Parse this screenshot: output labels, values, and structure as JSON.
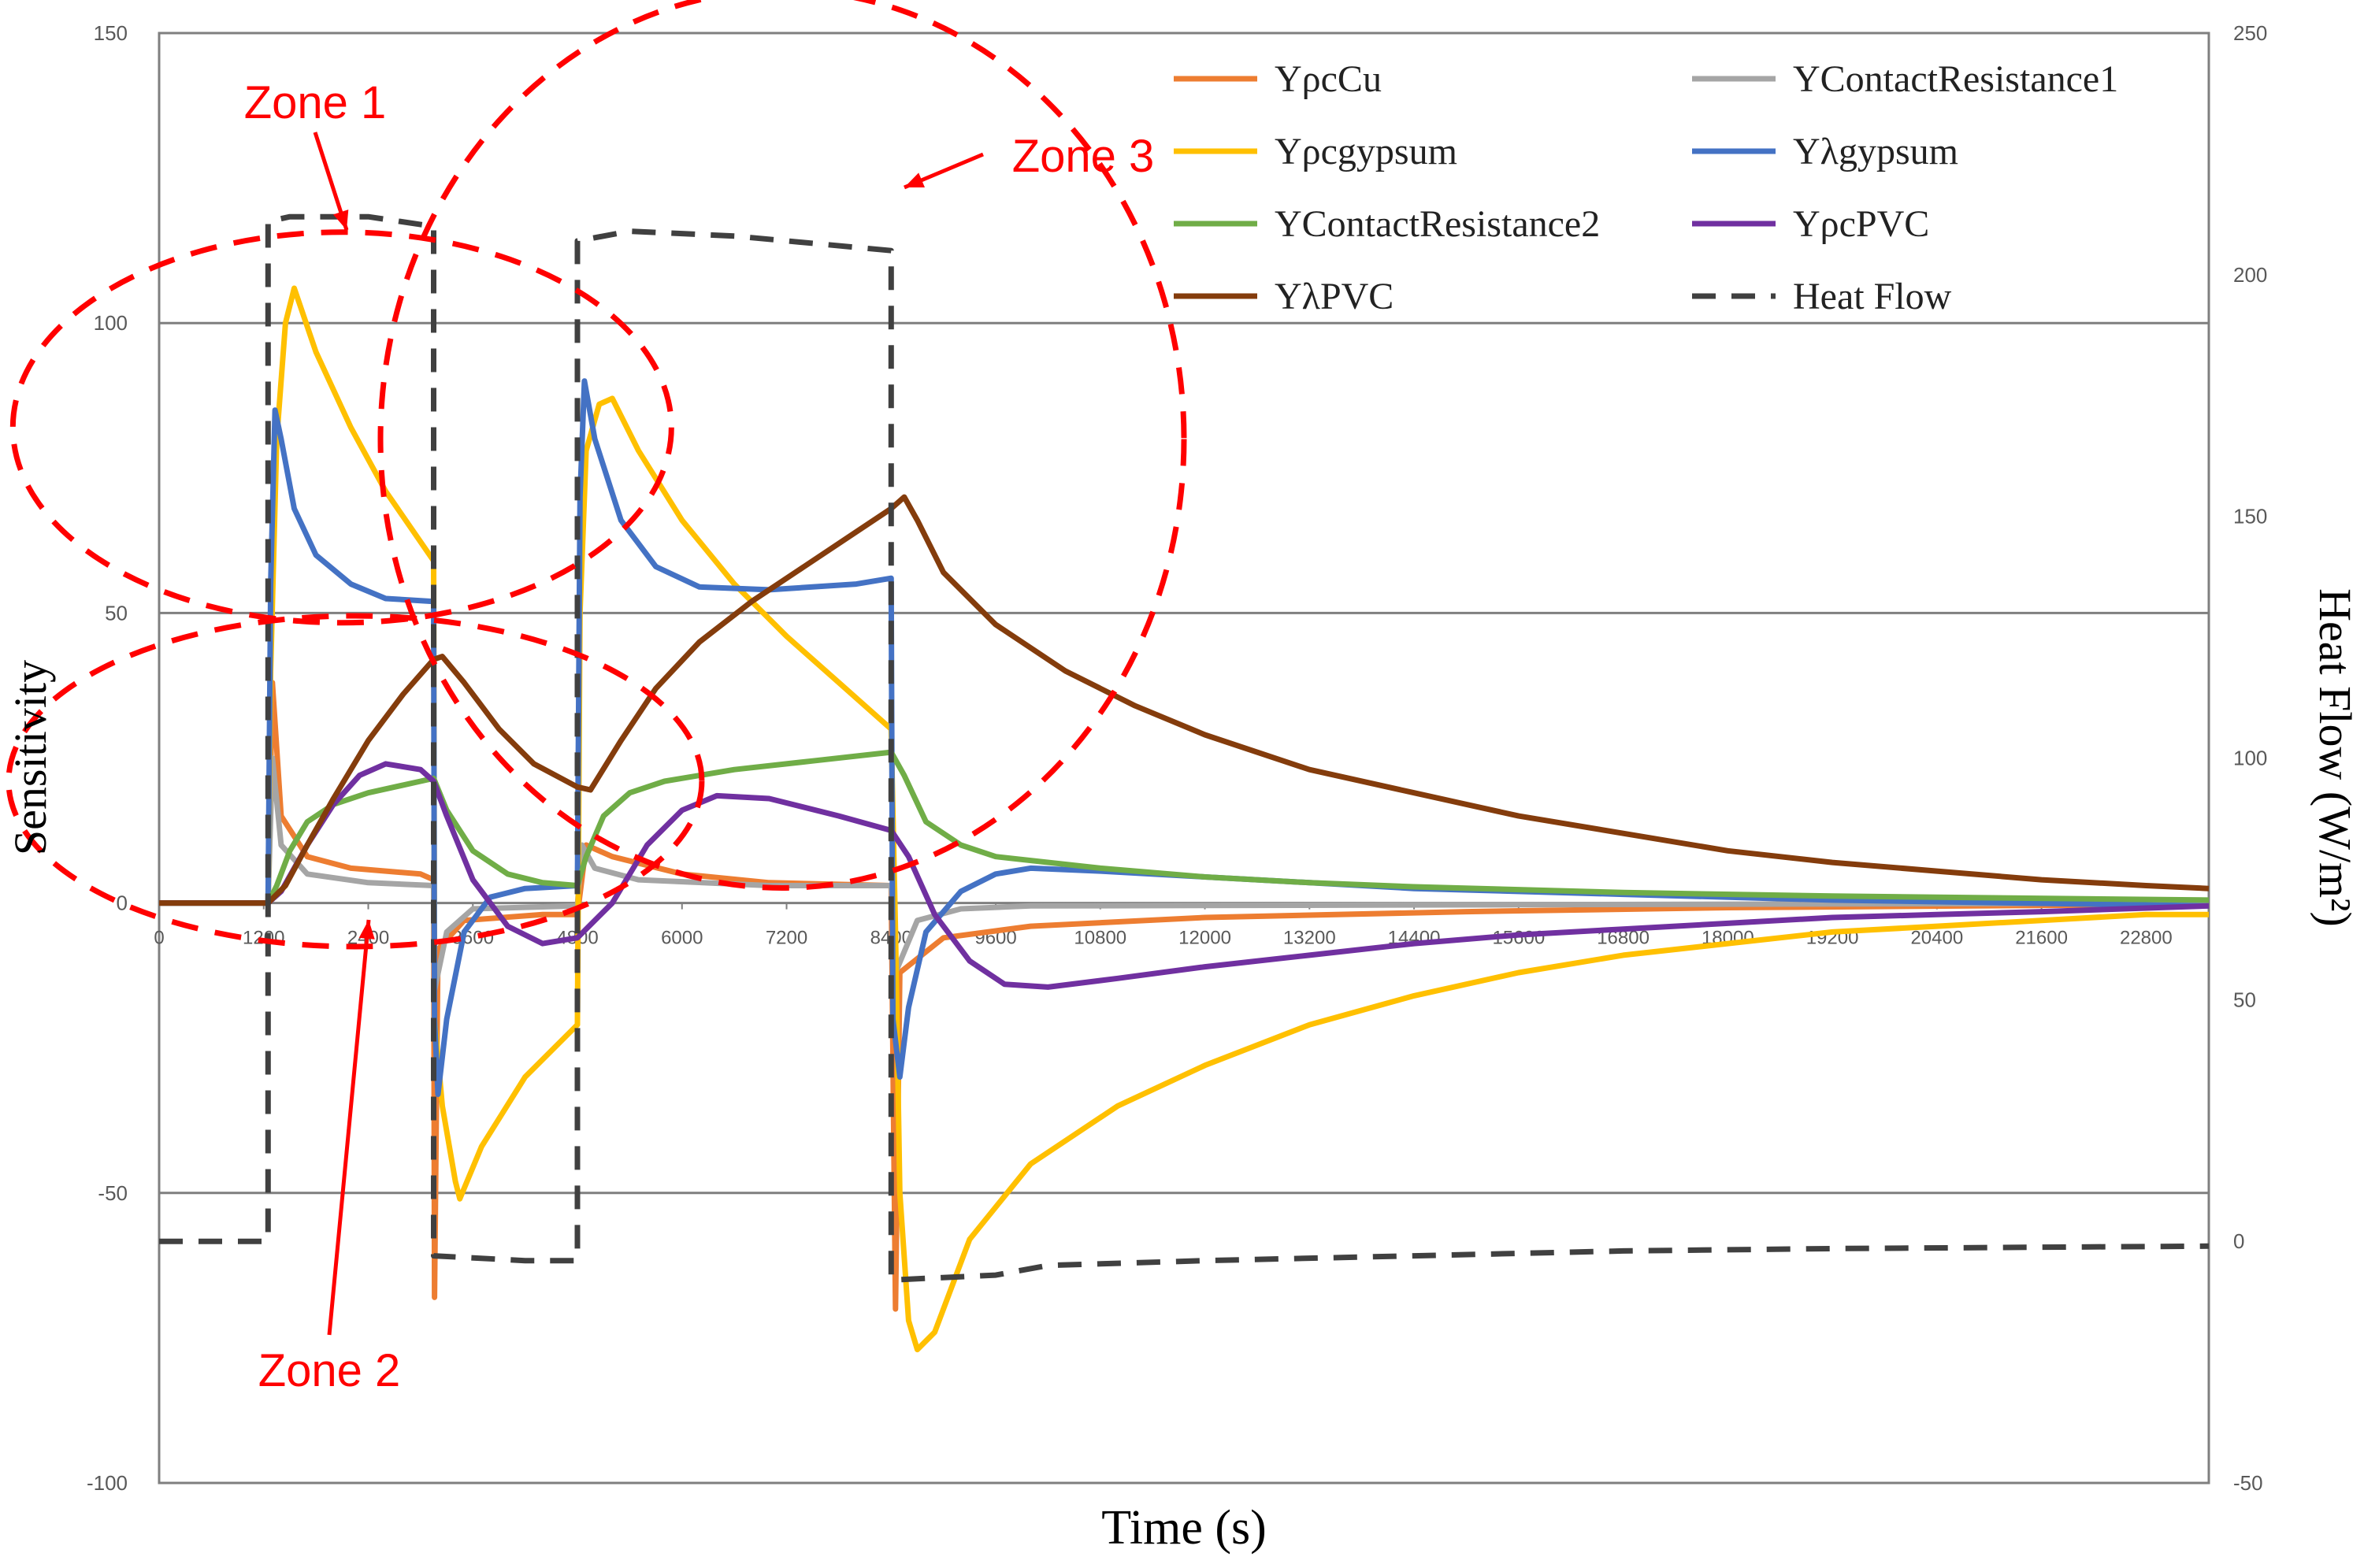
{
  "chart_data": {
    "type": "line",
    "xlabel": "Time (s)",
    "ylabel": "Sensitivity",
    "y2label": "Heat Flow (W/m²)",
    "xlim": [
      0,
      23520
    ],
    "ylim": [
      -100,
      150
    ],
    "y2lim": [
      -50,
      250
    ],
    "x_ticks": [
      0,
      1200,
      2400,
      3600,
      4800,
      6000,
      7200,
      8400,
      9600,
      10800,
      12000,
      13200,
      14400,
      15600,
      16800,
      18000,
      19200,
      20400,
      21600,
      22800
    ],
    "x_tick_labels": [
      "0",
      "1200",
      "2400",
      "3600",
      "4800",
      "6000",
      "7200",
      "8400",
      "9600",
      "10800",
      "12000",
      "13200",
      "14400",
      "15600",
      "16800",
      "18000",
      "19200",
      "20400",
      "21600",
      "22800"
    ],
    "y_ticks": [
      -100,
      -50,
      0,
      50,
      100,
      150
    ],
    "y_tick_labels": [
      "-100",
      "-50",
      "0",
      "50",
      "100",
      "150"
    ],
    "y2_ticks": [
      -50,
      0,
      50,
      100,
      150,
      200,
      250
    ],
    "y2_tick_labels": [
      "-50",
      "0",
      "50",
      "100",
      "150",
      "200",
      "250"
    ],
    "gridlines": [
      -50,
      50,
      100
    ],
    "legend_position": "top-right",
    "series": [
      {
        "name": "YρcCu",
        "color": "#ED7D31",
        "axis": "left",
        "dash": false,
        "points": [
          [
            0,
            0
          ],
          [
            1250,
            0
          ],
          [
            1300,
            38
          ],
          [
            1400,
            15
          ],
          [
            1700,
            8
          ],
          [
            2200,
            6
          ],
          [
            3000,
            5
          ],
          [
            3150,
            4
          ],
          [
            3160,
            -68
          ],
          [
            3200,
            -8
          ],
          [
            3500,
            -3
          ],
          [
            4400,
            -2
          ],
          [
            4800,
            -2
          ],
          [
            4850,
            4
          ],
          [
            4900,
            10
          ],
          [
            5200,
            8
          ],
          [
            6000,
            5
          ],
          [
            7000,
            3.5
          ],
          [
            8400,
            3
          ],
          [
            8450,
            -70
          ],
          [
            8500,
            -12
          ],
          [
            9000,
            -6
          ],
          [
            10000,
            -4
          ],
          [
            12000,
            -2.5
          ],
          [
            15000,
            -1.5
          ],
          [
            18000,
            -0.8
          ],
          [
            23520,
            -0.2
          ]
        ]
      },
      {
        "name": "YContactResistance1",
        "color": "#A5A5A5",
        "axis": "left",
        "dash": false,
        "points": [
          [
            0,
            0
          ],
          [
            1250,
            0
          ],
          [
            1300,
            25
          ],
          [
            1400,
            10
          ],
          [
            1700,
            5
          ],
          [
            2400,
            3.5
          ],
          [
            3150,
            3
          ],
          [
            3160,
            -15
          ],
          [
            3300,
            -5
          ],
          [
            3600,
            -1
          ],
          [
            4800,
            -0.5
          ],
          [
            4850,
            10
          ],
          [
            5000,
            6
          ],
          [
            5500,
            4
          ],
          [
            7000,
            3
          ],
          [
            8400,
            3
          ],
          [
            8450,
            -12
          ],
          [
            8700,
            -3
          ],
          [
            9200,
            -1
          ],
          [
            10000,
            -0.5
          ],
          [
            23520,
            0
          ]
        ]
      },
      {
        "name": "Yρcgypsum",
        "color": "#FFC000",
        "axis": "left",
        "dash": false,
        "points": [
          [
            0,
            0
          ],
          [
            1250,
            0
          ],
          [
            1280,
            40
          ],
          [
            1350,
            80
          ],
          [
            1450,
            100
          ],
          [
            1550,
            106
          ],
          [
            1800,
            95
          ],
          [
            2200,
            82
          ],
          [
            2600,
            71
          ],
          [
            3150,
            59
          ],
          [
            3160,
            -20
          ],
          [
            3250,
            -35
          ],
          [
            3400,
            -48
          ],
          [
            3450,
            -51
          ],
          [
            3700,
            -42
          ],
          [
            4200,
            -30
          ],
          [
            4800,
            -21
          ],
          [
            4830,
            50
          ],
          [
            4900,
            78
          ],
          [
            5050,
            86
          ],
          [
            5200,
            87
          ],
          [
            5500,
            78
          ],
          [
            6000,
            66
          ],
          [
            6600,
            55
          ],
          [
            7200,
            46
          ],
          [
            7800,
            38
          ],
          [
            8400,
            30
          ],
          [
            8450,
            -5
          ],
          [
            8500,
            -50
          ],
          [
            8600,
            -72
          ],
          [
            8700,
            -77
          ],
          [
            8900,
            -74
          ],
          [
            9300,
            -58
          ],
          [
            10000,
            -45
          ],
          [
            11000,
            -35
          ],
          [
            12000,
            -28
          ],
          [
            13200,
            -21
          ],
          [
            14400,
            -16
          ],
          [
            15600,
            -12
          ],
          [
            16800,
            -9
          ],
          [
            18000,
            -7
          ],
          [
            19200,
            -5
          ],
          [
            20400,
            -4
          ],
          [
            21600,
            -3
          ],
          [
            22800,
            -2
          ],
          [
            23520,
            -2
          ]
        ]
      },
      {
        "name": "Yλgypsum",
        "color": "#4472C4",
        "axis": "left",
        "dash": false,
        "points": [
          [
            0,
            0
          ],
          [
            1250,
            0
          ],
          [
            1280,
            55
          ],
          [
            1330,
            85
          ],
          [
            1400,
            80
          ],
          [
            1550,
            68
          ],
          [
            1800,
            60
          ],
          [
            2200,
            55
          ],
          [
            2600,
            52.5
          ],
          [
            3150,
            52
          ],
          [
            3160,
            -20
          ],
          [
            3200,
            -33
          ],
          [
            3300,
            -20
          ],
          [
            3500,
            -5
          ],
          [
            3800,
            1
          ],
          [
            4200,
            2.5
          ],
          [
            4800,
            3
          ],
          [
            4830,
            70
          ],
          [
            4880,
            90
          ],
          [
            5000,
            80
          ],
          [
            5300,
            66
          ],
          [
            5700,
            58
          ],
          [
            6200,
            54.5
          ],
          [
            7000,
            54
          ],
          [
            8000,
            55
          ],
          [
            8400,
            56
          ],
          [
            8420,
            -20
          ],
          [
            8500,
            -30
          ],
          [
            8600,
            -18
          ],
          [
            8800,
            -5
          ],
          [
            9200,
            2
          ],
          [
            9600,
            5
          ],
          [
            10000,
            6
          ],
          [
            10800,
            5.5
          ],
          [
            12000,
            4.5
          ],
          [
            13200,
            3.5
          ],
          [
            14400,
            2.5
          ],
          [
            16800,
            1.5
          ],
          [
            19200,
            0.5
          ],
          [
            23520,
            -0.5
          ]
        ]
      },
      {
        "name": "YContactResistance2",
        "color": "#70AD47",
        "axis": "left",
        "dash": false,
        "points": [
          [
            0,
            0
          ],
          [
            1250,
            0
          ],
          [
            1350,
            3
          ],
          [
            1500,
            9
          ],
          [
            1700,
            14
          ],
          [
            2000,
            17
          ],
          [
            2400,
            19
          ],
          [
            3000,
            21
          ],
          [
            3150,
            21.5
          ],
          [
            3300,
            16
          ],
          [
            3600,
            9
          ],
          [
            4000,
            5
          ],
          [
            4400,
            3.5
          ],
          [
            4800,
            3
          ],
          [
            4900,
            8
          ],
          [
            5100,
            15
          ],
          [
            5400,
            19
          ],
          [
            5800,
            21
          ],
          [
            6600,
            23
          ],
          [
            7500,
            24.5
          ],
          [
            8400,
            26
          ],
          [
            8550,
            22
          ],
          [
            8800,
            14
          ],
          [
            9200,
            10
          ],
          [
            9600,
            8
          ],
          [
            10800,
            6
          ],
          [
            12000,
            4.5
          ],
          [
            13200,
            3.5
          ],
          [
            14400,
            2.8
          ],
          [
            16800,
            1.8
          ],
          [
            19200,
            1.2
          ],
          [
            23520,
            0.5
          ]
        ]
      },
      {
        "name": "YρcPVC",
        "color": "#7030A0",
        "axis": "left",
        "dash": false,
        "points": [
          [
            0,
            0
          ],
          [
            1250,
            0
          ],
          [
            1400,
            2
          ],
          [
            1700,
            10
          ],
          [
            2000,
            17
          ],
          [
            2300,
            22
          ],
          [
            2600,
            24
          ],
          [
            3000,
            23
          ],
          [
            3150,
            21
          ],
          [
            3300,
            15
          ],
          [
            3600,
            4
          ],
          [
            4000,
            -4
          ],
          [
            4400,
            -7
          ],
          [
            4800,
            -6
          ],
          [
            5200,
            0
          ],
          [
            5600,
            10
          ],
          [
            6000,
            16
          ],
          [
            6400,
            18.5
          ],
          [
            7000,
            18
          ],
          [
            7800,
            15
          ],
          [
            8400,
            12.5
          ],
          [
            8600,
            8
          ],
          [
            8900,
            -2
          ],
          [
            9300,
            -10
          ],
          [
            9700,
            -14
          ],
          [
            10200,
            -14.5
          ],
          [
            11000,
            -13
          ],
          [
            12000,
            -11
          ],
          [
            13200,
            -9
          ],
          [
            14400,
            -7
          ],
          [
            15600,
            -5.5
          ],
          [
            16800,
            -4.5
          ],
          [
            18000,
            -3.5
          ],
          [
            19200,
            -2.5
          ],
          [
            20400,
            -2
          ],
          [
            21600,
            -1.5
          ],
          [
            23520,
            -0.5
          ]
        ]
      },
      {
        "name": "YλPVC",
        "color": "#843C0C",
        "axis": "left",
        "dash": false,
        "points": [
          [
            0,
            0
          ],
          [
            1250,
            0
          ],
          [
            1450,
            3
          ],
          [
            1700,
            10
          ],
          [
            2000,
            18
          ],
          [
            2400,
            28
          ],
          [
            2800,
            36
          ],
          [
            3150,
            42
          ],
          [
            3250,
            42.5
          ],
          [
            3500,
            38
          ],
          [
            3900,
            30
          ],
          [
            4300,
            24
          ],
          [
            4800,
            20
          ],
          [
            4950,
            19.5
          ],
          [
            5300,
            28
          ],
          [
            5700,
            37
          ],
          [
            6200,
            45
          ],
          [
            6800,
            52
          ],
          [
            7400,
            58
          ],
          [
            8000,
            64
          ],
          [
            8400,
            68
          ],
          [
            8550,
            70
          ],
          [
            8700,
            66
          ],
          [
            9000,
            57
          ],
          [
            9600,
            48
          ],
          [
            10400,
            40
          ],
          [
            11200,
            34
          ],
          [
            12000,
            29
          ],
          [
            13200,
            23
          ],
          [
            14400,
            19
          ],
          [
            15600,
            15
          ],
          [
            16800,
            12
          ],
          [
            18000,
            9
          ],
          [
            19200,
            7
          ],
          [
            20400,
            5.5
          ],
          [
            21600,
            4
          ],
          [
            22800,
            3
          ],
          [
            23520,
            2.5
          ]
        ]
      },
      {
        "name": "Heat Flow",
        "color": "#404040",
        "axis": "right",
        "dash": true,
        "points": [
          [
            0,
            0
          ],
          [
            1250,
            0
          ],
          [
            1250,
            211
          ],
          [
            1500,
            212
          ],
          [
            2400,
            212
          ],
          [
            3150,
            210
          ],
          [
            3150,
            -3
          ],
          [
            4200,
            -4
          ],
          [
            4800,
            -4
          ],
          [
            4800,
            207
          ],
          [
            5400,
            209
          ],
          [
            6600,
            208
          ],
          [
            8400,
            205
          ],
          [
            8400,
            -8
          ],
          [
            9600,
            -7
          ],
          [
            10200,
            -5
          ],
          [
            12000,
            -4
          ],
          [
            14400,
            -3
          ],
          [
            16800,
            -2
          ],
          [
            19200,
            -1.5
          ],
          [
            23520,
            -1
          ]
        ]
      }
    ],
    "annotations": [
      {
        "text": "Zone 1"
      },
      {
        "text": "Zone 2"
      },
      {
        "text": "Zone 3"
      }
    ]
  }
}
